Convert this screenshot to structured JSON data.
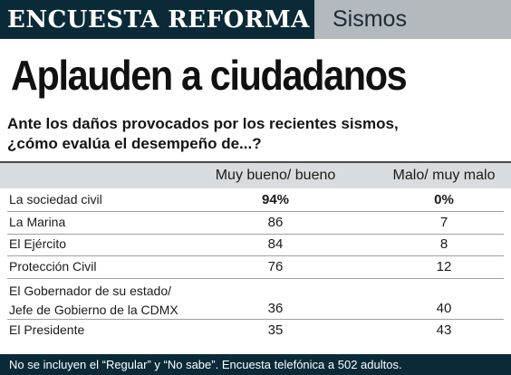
{
  "header": {
    "brand": "ENCUESTA REFORMA",
    "section": "Sismos"
  },
  "headline": "Aplauden a ciudadanos",
  "question": {
    "line1": "Ante los daños provocados por los recientes sismos,",
    "line2": "¿cómo evalúa el desempeño de...?"
  },
  "chart_data": {
    "type": "table",
    "columns": [
      "Muy bueno/ bueno",
      "Malo/ muy malo"
    ],
    "rows": [
      {
        "label": [
          "La sociedad civil"
        ],
        "values": [
          "94%",
          "0%"
        ]
      },
      {
        "label": [
          "La Marina"
        ],
        "values": [
          "86",
          "7"
        ]
      },
      {
        "label": [
          "El Ejército"
        ],
        "values": [
          "84",
          "8"
        ]
      },
      {
        "label": [
          "Protección Civil"
        ],
        "values": [
          "76",
          "12"
        ]
      },
      {
        "label": [
          "El Gobernador de su estado/",
          "Jefe de Gobierno de la CDMX"
        ],
        "values": [
          "36",
          "40"
        ]
      },
      {
        "label": [
          "El Presidente"
        ],
        "values": [
          "35",
          "43"
        ]
      }
    ]
  },
  "footer": {
    "note": "No se incluyen el “Regular” y “No sabe”. Encuesta telefónica a 502 adultos."
  }
}
